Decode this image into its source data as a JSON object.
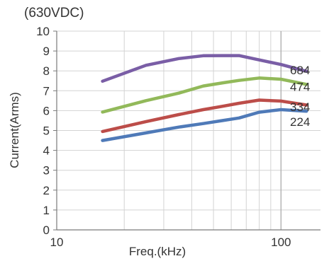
{
  "chart_data": {
    "type": "line",
    "title": "(630VDC)",
    "xlabel": "Freq.(kHz)",
    "ylabel": "Current(Arms)",
    "x_scale": "log",
    "xlim": [
      10,
      150
    ],
    "ylim": [
      0,
      10
    ],
    "x_ticks": [
      10,
      100
    ],
    "y_ticks": [
      0,
      1,
      2,
      3,
      4,
      5,
      6,
      7,
      8,
      9,
      10
    ],
    "grid": true,
    "series": [
      {
        "name": "684",
        "color": "#7a5ea6",
        "x": [
          16,
          25,
          35,
          45,
          55,
          65,
          80,
          100,
          130
        ],
        "y": [
          7.48,
          8.28,
          8.62,
          8.76,
          8.77,
          8.77,
          8.55,
          8.32,
          7.98
        ]
      },
      {
        "name": "474",
        "color": "#92b95a",
        "x": [
          16,
          25,
          35,
          45,
          55,
          65,
          80,
          100,
          130
        ],
        "y": [
          5.93,
          6.5,
          6.88,
          7.24,
          7.4,
          7.52,
          7.64,
          7.58,
          7.32
        ]
      },
      {
        "name": "334",
        "color": "#bc4d49",
        "x": [
          16,
          25,
          35,
          45,
          55,
          65,
          80,
          100,
          130
        ],
        "y": [
          4.95,
          5.45,
          5.8,
          6.05,
          6.22,
          6.37,
          6.53,
          6.48,
          6.28
        ]
      },
      {
        "name": "224",
        "color": "#4f7ab8",
        "x": [
          16,
          25,
          35,
          45,
          55,
          65,
          80,
          100,
          130
        ],
        "y": [
          4.5,
          4.88,
          5.17,
          5.35,
          5.5,
          5.63,
          5.92,
          6.05,
          5.97
        ]
      }
    ]
  }
}
